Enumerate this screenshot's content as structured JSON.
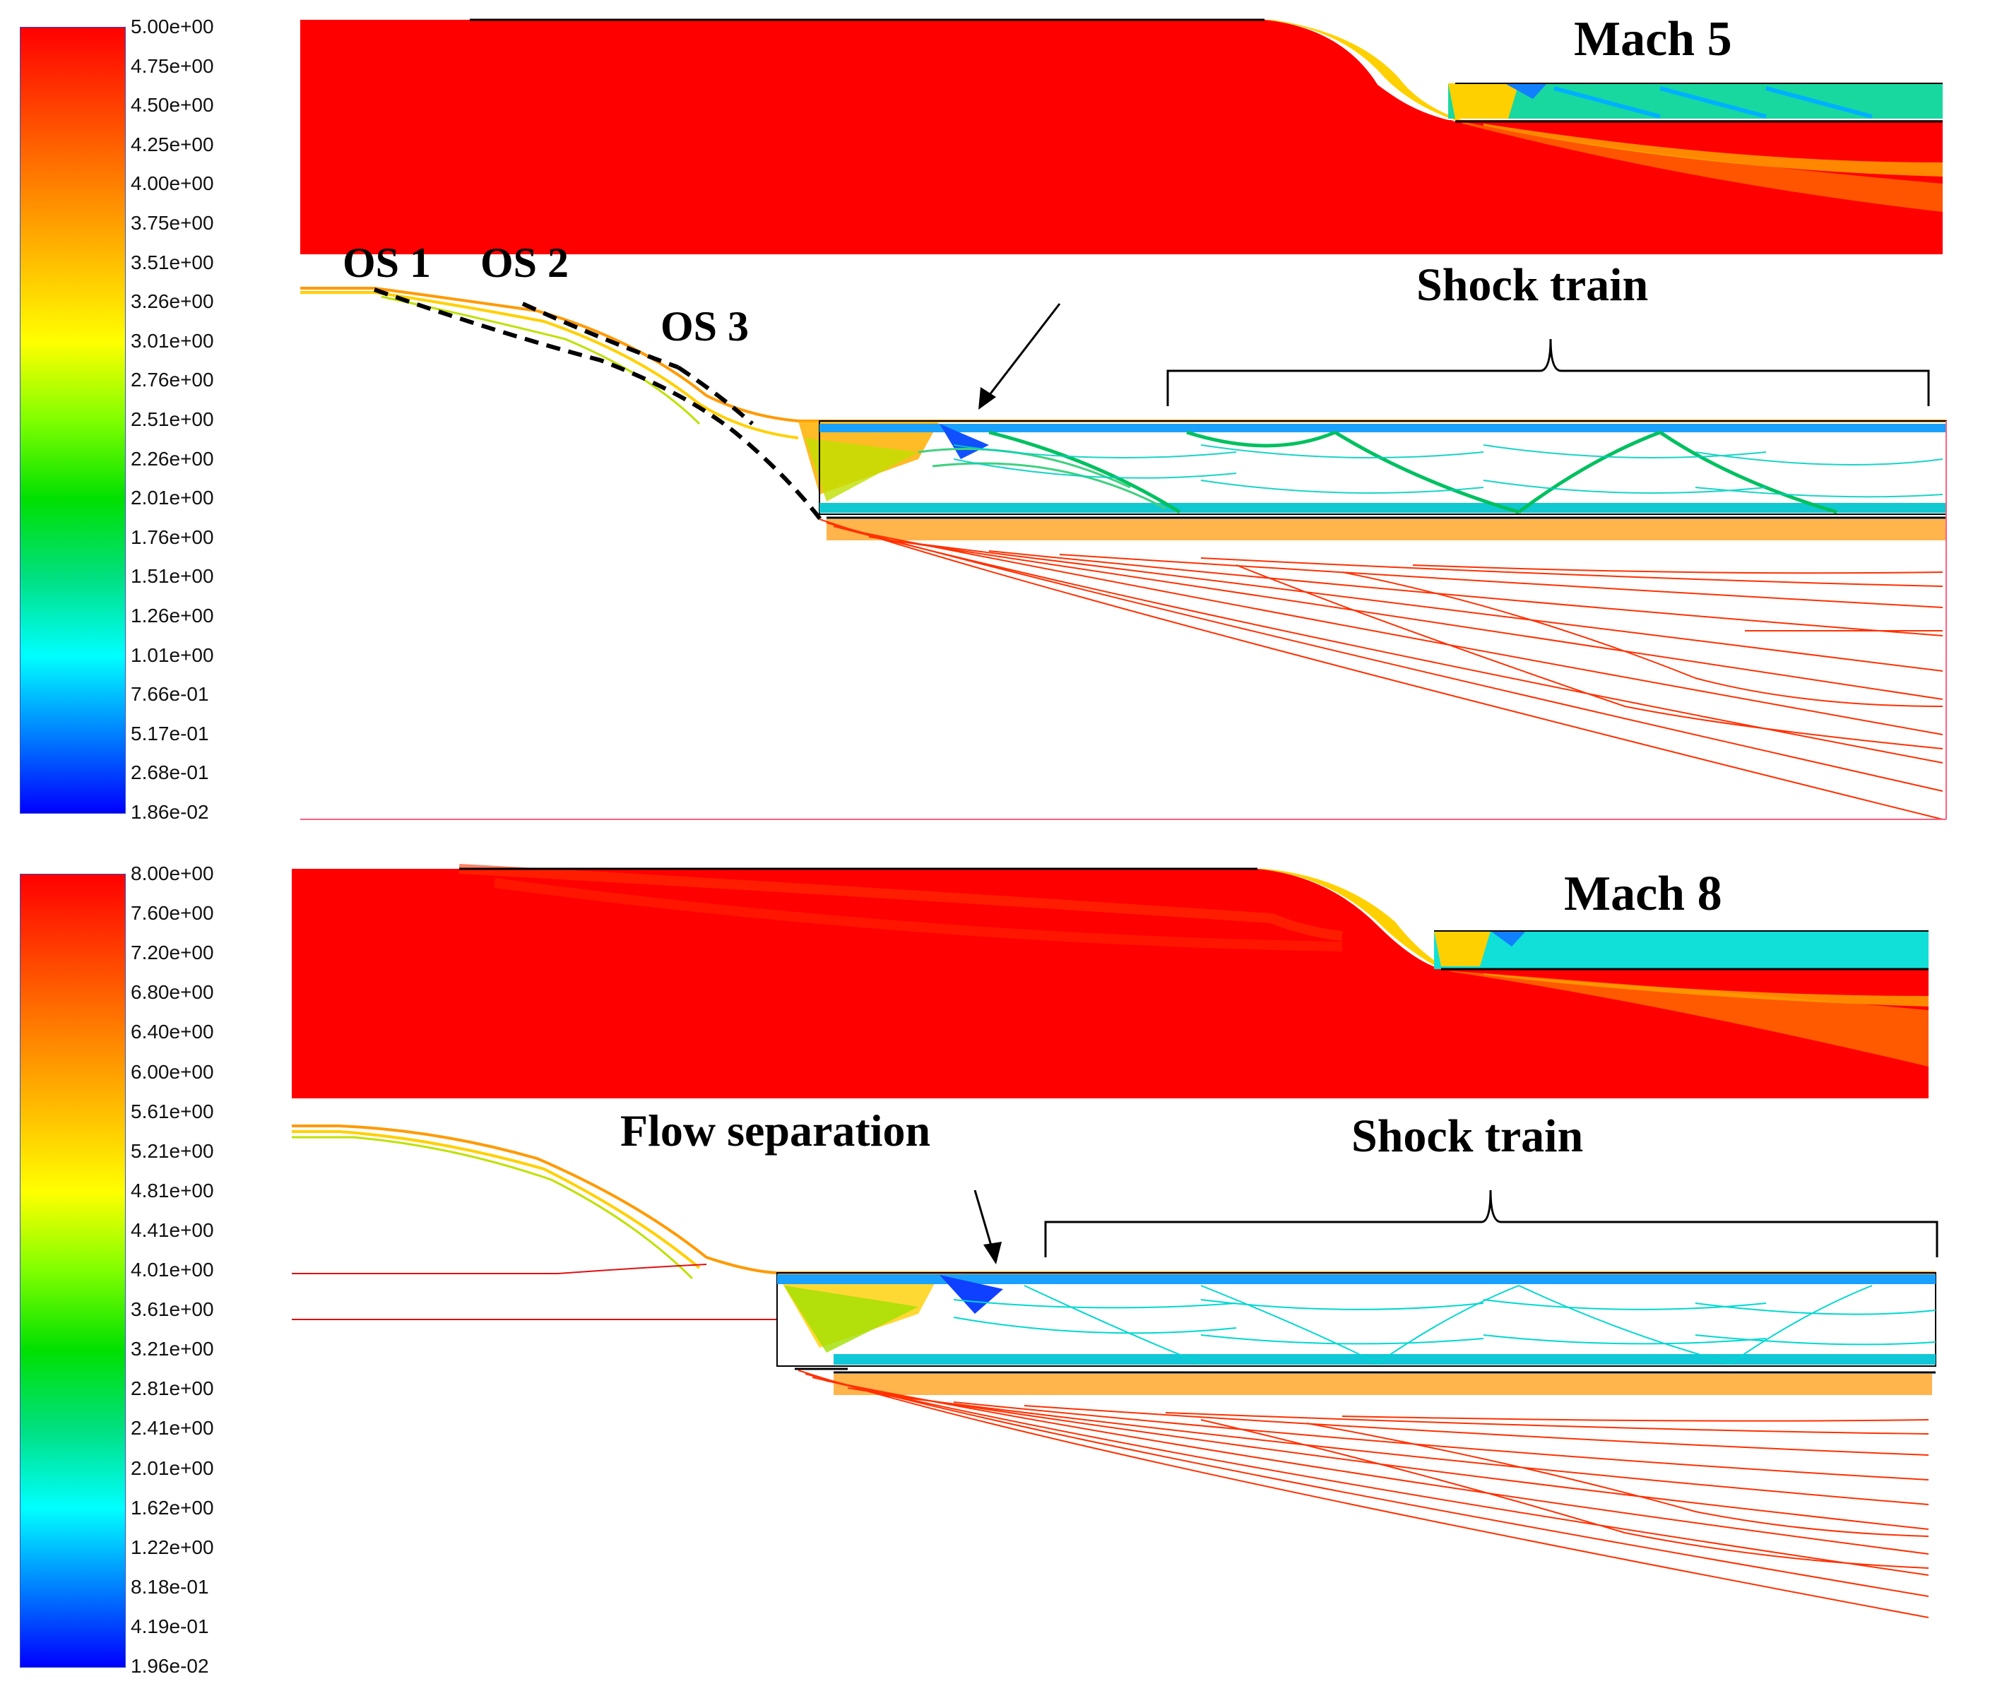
{
  "panels": [
    {
      "id": "mach5",
      "title": "Mach 5",
      "colorbar": {
        "ticks": [
          "5.00e+00",
          "4.75e+00",
          "4.50e+00",
          "4.25e+00",
          "4.00e+00",
          "3.75e+00",
          "3.51e+00",
          "3.26e+00",
          "3.01e+00",
          "2.76e+00",
          "2.51e+00",
          "2.26e+00",
          "2.01e+00",
          "1.76e+00",
          "1.51e+00",
          "1.26e+00",
          "1.01e+00",
          "7.66e-01",
          "5.17e-01",
          "2.68e-01",
          "1.86e-02"
        ]
      },
      "annotations": {
        "os1": "OS 1",
        "os2": "OS 2",
        "os3": "OS 3",
        "shock_train": "Shock train"
      }
    },
    {
      "id": "mach8",
      "title": "Mach 8",
      "colorbar": {
        "ticks": [
          "8.00e+00",
          "7.60e+00",
          "7.20e+00",
          "6.80e+00",
          "6.40e+00",
          "6.00e+00",
          "5.61e+00",
          "5.21e+00",
          "4.81e+00",
          "4.41e+00",
          "4.01e+00",
          "3.61e+00",
          "3.21e+00",
          "2.81e+00",
          "2.41e+00",
          "2.01e+00",
          "1.62e+00",
          "1.22e+00",
          "8.18e-01",
          "4.19e-01",
          "1.96e-02"
        ]
      },
      "annotations": {
        "flow_separation": "Flow separation",
        "shock_train": "Shock train"
      }
    }
  ],
  "colormap": [
    "#ff0000",
    "#ff4000",
    "#ff8000",
    "#ffbf00",
    "#ffff00",
    "#80ff00",
    "#00e000",
    "#00e080",
    "#00ffff",
    "#0080ff",
    "#0000ff"
  ]
}
